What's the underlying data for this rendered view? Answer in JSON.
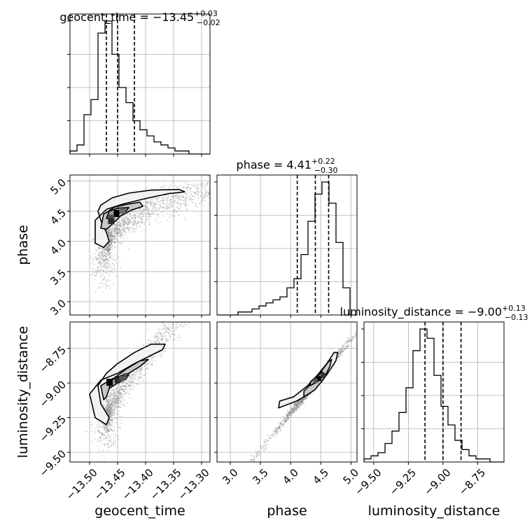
{
  "chart_data": {
    "type": "corner",
    "parameters": [
      "geocent_time",
      "phase",
      "luminosity_distance"
    ],
    "axis_labels": {
      "geocent_time": "geocent_time",
      "phase": "phase",
      "luminosity_distance": "luminosity_distance"
    },
    "titles": [
      {
        "param": "geocent_time",
        "prefix": "geocent_time = ",
        "value": "−13.45",
        "plus": "+0.03",
        "minus": "−0.02"
      },
      {
        "param": "phase",
        "prefix": "phase = ",
        "value": "4.41",
        "plus": "+0.22",
        "minus": "−0.30"
      },
      {
        "param": "luminosity_distance",
        "prefix": "luminosity_distance = ",
        "value": "−9.00",
        "plus": "+0.13",
        "minus": "−0.13"
      }
    ],
    "ranges": {
      "geocent_time": [
        -13.535,
        -13.285
      ],
      "phase": [
        2.78,
        5.1
      ],
      "luminosity_distance": [
        -9.57,
        -8.56
      ]
    },
    "ticks": {
      "geocent_time": [
        {
          "v": -13.5,
          "label": "−13.50"
        },
        {
          "v": -13.45,
          "label": "−13.45"
        },
        {
          "v": -13.4,
          "label": "−13.40"
        },
        {
          "v": -13.35,
          "label": "−13.35"
        },
        {
          "v": -13.3,
          "label": "−13.30"
        }
      ],
      "phase": [
        {
          "v": 3.0,
          "label": "3.0"
        },
        {
          "v": 3.5,
          "label": "3.5"
        },
        {
          "v": 4.0,
          "label": "4.0"
        },
        {
          "v": 4.5,
          "label": "4.5"
        },
        {
          "v": 5.0,
          "label": "5.0"
        }
      ],
      "luminosity_distance": [
        {
          "v": -9.5,
          "label": "−9.50"
        },
        {
          "v": -9.25,
          "label": "−9.25"
        },
        {
          "v": -9.0,
          "label": "−9.00"
        },
        {
          "v": -8.75,
          "label": "−8.75"
        }
      ]
    },
    "quantiles": {
      "geocent_time": [
        -13.47,
        -13.45,
        -13.42
      ],
      "phase": [
        4.11,
        4.41,
        4.63
      ],
      "luminosity_distance": [
        -9.13,
        -9.0,
        -8.87
      ]
    },
    "histograms": {
      "geocent_time": {
        "edges_start": -13.535,
        "bin_width": 0.0125,
        "counts": [
          1,
          3,
          13,
          18,
          40,
          44,
          33,
          22,
          17,
          11,
          8,
          6,
          4,
          3,
          2,
          1,
          1,
          0,
          0,
          0
        ]
      },
      "phase": {
        "edges_start": 2.78,
        "bin_width": 0.116,
        "counts": [
          0,
          0,
          0,
          1,
          1,
          2,
          3,
          4,
          5,
          6,
          9,
          12,
          20,
          31,
          40,
          44,
          37,
          24,
          9,
          0
        ]
      },
      "luminosity_distance": {
        "edges_start": -9.57,
        "bin_width": 0.0505,
        "counts": [
          1,
          2,
          3,
          6,
          10,
          16,
          24,
          36,
          43,
          40,
          28,
          18,
          12,
          7,
          4,
          2,
          1,
          1,
          0,
          0
        ]
      }
    },
    "grid": true,
    "scatter_color": "#777777",
    "contour_levels": 3
  }
}
